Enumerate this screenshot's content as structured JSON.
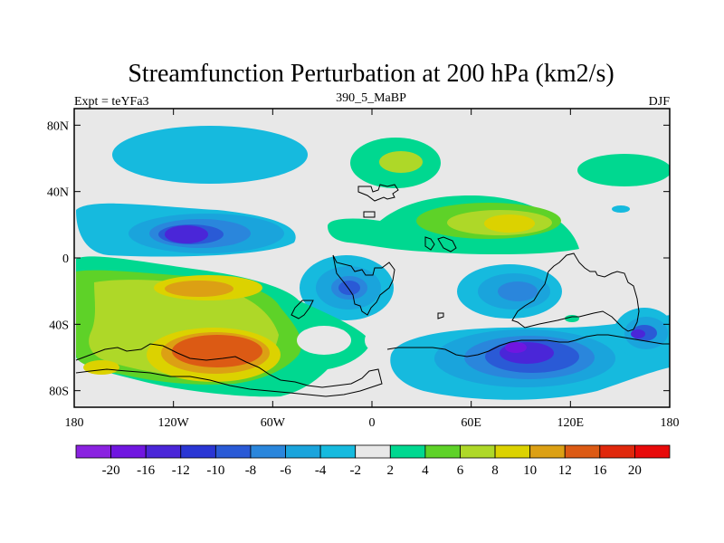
{
  "chart_data": {
    "type": "heatmap",
    "title": "Streamfunction Perturbation at 200 hPa (km2/s)",
    "subtitle_left": "Expt = teYFa3",
    "subtitle_center": "390_5_MaBP",
    "subtitle_right": "DJF",
    "xlim": [
      -180,
      180
    ],
    "ylim": [
      -90,
      90
    ],
    "x_ticks": [
      {
        "value": -180,
        "label": "180"
      },
      {
        "value": -120,
        "label": "120W"
      },
      {
        "value": -60,
        "label": "60W"
      },
      {
        "value": 0,
        "label": "0"
      },
      {
        "value": 60,
        "label": "60E"
      },
      {
        "value": 120,
        "label": "120E"
      },
      {
        "value": 180,
        "label": "180"
      }
    ],
    "y_ticks": [
      {
        "value": 80,
        "label": "80N"
      },
      {
        "value": 40,
        "label": "40N"
      },
      {
        "value": 0,
        "label": "0"
      },
      {
        "value": -40,
        "label": "40S"
      },
      {
        "value": -80,
        "label": "80S"
      }
    ],
    "colorbar": {
      "colors": [
        "#8a22e0",
        "#7016e0",
        "#4a26d8",
        "#2a36d4",
        "#2a5ad6",
        "#2a86dc",
        "#1aa4dc",
        "#16bade",
        "#e8e8e8",
        "#00d890",
        "#5ed228",
        "#aed828",
        "#dcd200",
        "#dca014",
        "#dc5a14",
        "#e0280c",
        "#e80a0a"
      ],
      "labels": [
        "-20",
        "-16",
        "-12",
        "-10",
        "-8",
        "-6",
        "-4",
        "-2",
        "2",
        "4",
        "6",
        "8",
        "10",
        "12",
        "16",
        "20"
      ]
    },
    "background_color": "#e8e8e8",
    "anomalies": [
      {
        "lon": -98,
        "lat": 18,
        "value": -10
      },
      {
        "lon": -14,
        "lat": -18,
        "value": -10
      },
      {
        "lon": 90,
        "lat": -58,
        "value": -12
      },
      {
        "lon": 162,
        "lat": -46,
        "value": -10
      },
      {
        "lon": 95,
        "lat": -22,
        "value": -8
      },
      {
        "lon": -75,
        "lat": 72,
        "value": -4
      },
      {
        "lon": 155,
        "lat": 52,
        "value": 4
      },
      {
        "lon": 18,
        "lat": 58,
        "value": 6
      },
      {
        "lon": 82,
        "lat": 22,
        "value": 8
      },
      {
        "lon": -88,
        "lat": -55,
        "value": 16
      },
      {
        "lon": -105,
        "lat": -20,
        "value": 10
      },
      {
        "lon": -80,
        "lat": -80,
        "value": 8
      }
    ]
  }
}
